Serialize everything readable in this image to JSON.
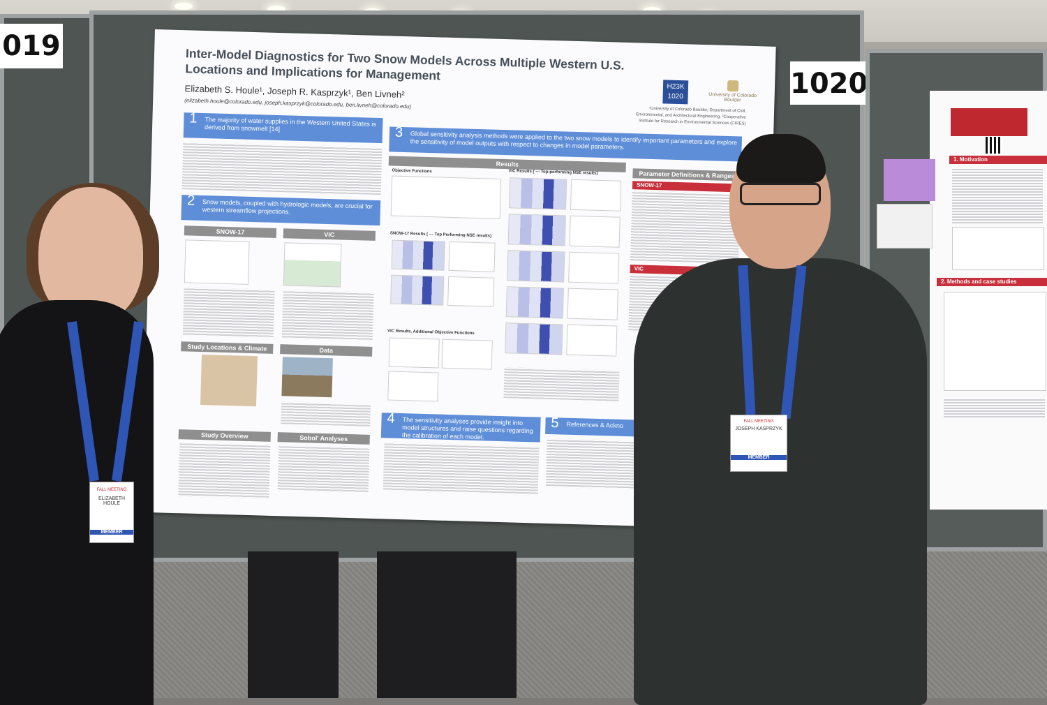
{
  "booths": {
    "left": "019",
    "center": "1020"
  },
  "poster": {
    "title": "Inter-Model Diagnostics for Two Snow Models Across Multiple Western U.S. Locations and Implications for Management",
    "authors": "Elizabeth S. Houle¹, Joseph R. Kasprzyk¹, Ben Livneh²",
    "emails": "(elizabeth.houle@colorado.edu, joseph.kasprzyk@colorado.edu, ben.livneh@colorado.edu)",
    "badge": "H23K 1020",
    "university": "University of Colorado Boulder",
    "affiliations": "¹University of Colorado Boulder, Department of Civil, Environmental, and Architectural Engineering, ²Cooperative Institute for Research in Environmental Sciences (CIRES)",
    "s1_num": "1",
    "s1_text": "The majority of water supplies in the Western United States is derived from snowmelt [14]",
    "s2_num": "2",
    "s2_text": "Snow models, coupled with hydrologic models, are crucial for western streamflow projections.",
    "s3_num": "3",
    "s3_text": "Global sensitivity analysis methods were applied to the two snow models to identify important parameters and explore the sensitivity of model outputs with respect to changes in model parameters.",
    "s4_num": "4",
    "s4_text": "The sensitivity analyses provide insight into model structures and raise questions regarding the calibration of each model.",
    "s5_num": "5",
    "s5_text": "References & Ackno",
    "h_snow17": "SNOW-17",
    "h_vic": "VIC",
    "h_study": "Study Locations & Climate",
    "h_data": "Data",
    "h_overview": "Study Overview",
    "h_sobol": "Sobol' Analyses",
    "h_results": "Results",
    "h_objfun": "Objective Functions",
    "h_vicres": "VIC Results [ --- Top-performing NSE results]",
    "h_snowres": "SNOW-17 Results [ --- Top Performing NSE results]",
    "h_vicadd": "VIC Results, Additional Objective Functions",
    "h_params": "Parameter Definitions & Ranges",
    "h_psnow": "SNOW-17",
    "h_pvic": "VIC"
  },
  "right_poster": {
    "h1": "1. Motivation",
    "h2": "2. Methods and case studies"
  },
  "people": {
    "left_member": "MEMBER",
    "right_member": "MEMBER",
    "left_name": "ELIZABETH HOULE",
    "right_name": "JOSEPH KASPRZYK",
    "meeting": "FALL MEETING"
  }
}
